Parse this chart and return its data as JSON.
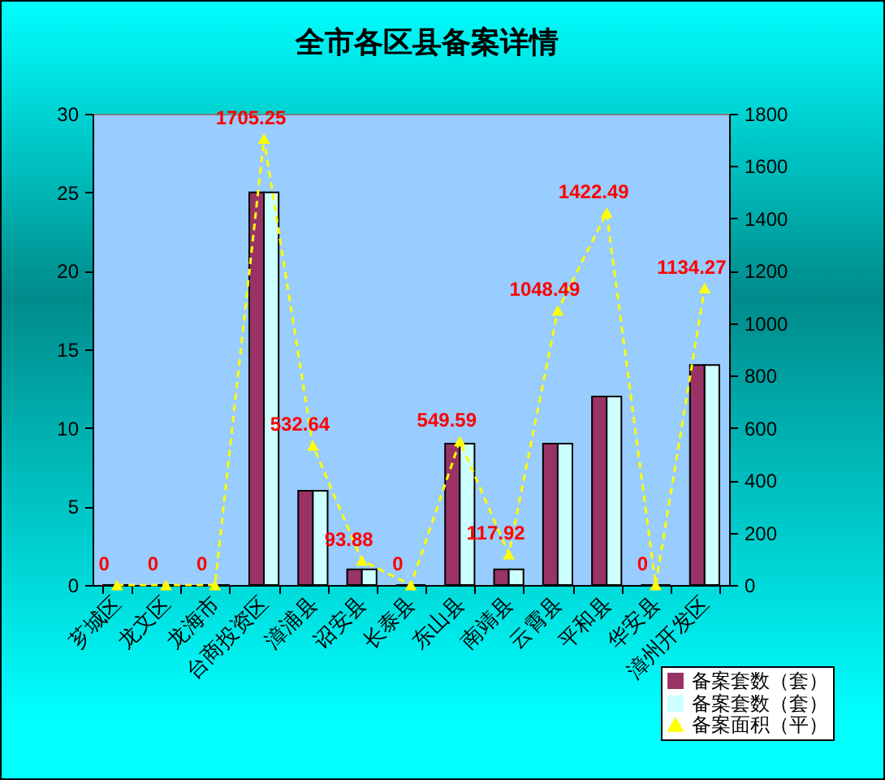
{
  "chart_data": {
    "type": "bar",
    "title": "全市各区县备案详情",
    "categories": [
      "芗城区",
      "龙文区",
      "龙海市",
      "台商投资区",
      "漳浦县",
      "诏安县",
      "长泰县",
      "东山县",
      "南靖县",
      "云霄县",
      "平和县",
      "华安县",
      "漳州开发区"
    ],
    "series": [
      {
        "name": "备案套数（套）",
        "color": "#993366",
        "values": [
          0,
          0,
          0,
          25,
          6,
          1,
          0,
          9,
          1,
          9,
          12,
          0,
          14
        ]
      },
      {
        "name": "备案套数（套）",
        "color": "#ccffff",
        "values": [
          0,
          0,
          0,
          25,
          6,
          1,
          0,
          9,
          1,
          9,
          12,
          0,
          14
        ]
      },
      {
        "name": "备案面积（平）",
        "type": "line",
        "axis": "y2",
        "color": "#ffff00",
        "values": [
          0,
          0,
          0,
          1705.25,
          532.64,
          93.88,
          0,
          549.59,
          117.92,
          1048.49,
          1422.49,
          0,
          1134.27
        ],
        "value_labels": [
          "0",
          "0",
          "0",
          "1705.25",
          "532.64",
          "93.88",
          "0",
          "549.59",
          "117.92",
          "1048.49",
          "1422.49",
          "0",
          "1134.27"
        ]
      }
    ],
    "ylim": [
      0,
      30
    ],
    "yticks": [
      0,
      5,
      10,
      15,
      20,
      25,
      30
    ],
    "y2lim": [
      0,
      1800
    ],
    "y2ticks": [
      0,
      200,
      400,
      600,
      800,
      1000,
      1200,
      1400,
      1600,
      1800
    ],
    "legend": "bottom right",
    "marker": "triangle",
    "line_style": "dashed"
  }
}
